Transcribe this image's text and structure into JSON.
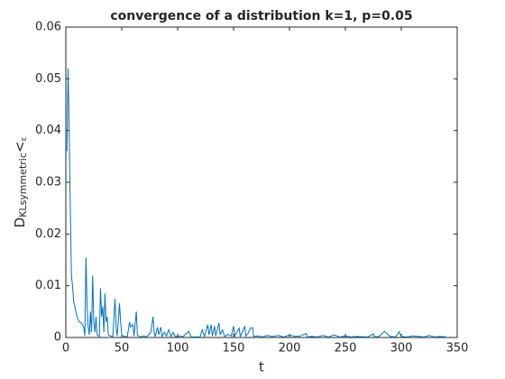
{
  "chart_data": {
    "type": "line",
    "title": "convergence of a distribution k=1, p=0.05",
    "xlabel": "t",
    "ylabel": [
      "D",
      "KLsymmetric",
      "<",
      "ε"
    ],
    "xlim": [
      0,
      350
    ],
    "xticks": [
      0,
      50,
      100,
      150,
      200,
      250,
      300,
      350
    ],
    "ylim": [
      0,
      0.06
    ],
    "yticks": [
      0,
      0.01,
      0.02,
      0.03,
      0.04,
      0.05,
      0.06
    ],
    "grid": false,
    "series": [
      {
        "color": "#0072bd",
        "x": [
          1,
          2,
          3,
          4,
          5,
          6,
          7,
          8,
          9,
          10,
          12,
          14,
          16,
          17,
          18,
          19,
          20,
          21,
          22,
          23,
          24,
          25,
          26,
          27,
          28,
          30,
          31,
          32,
          33,
          34,
          35,
          36,
          37,
          38,
          40,
          42,
          44,
          45,
          46,
          48,
          49,
          50,
          52,
          55,
          57,
          58,
          60,
          61,
          63,
          64,
          66,
          70,
          72,
          76,
          78,
          79,
          80,
          82,
          83,
          85,
          86,
          88,
          90,
          92,
          94,
          96,
          98,
          100,
          105,
          110,
          112,
          120,
          122,
          124,
          127,
          128,
          130,
          131,
          133,
          134,
          137,
          138,
          140,
          142,
          145,
          148,
          150,
          151,
          155,
          156,
          160,
          161,
          163,
          165,
          167,
          168,
          172,
          175,
          180,
          185,
          190,
          195,
          200,
          205,
          210,
          215,
          216,
          220,
          225,
          230,
          235,
          240,
          245,
          250,
          255,
          260,
          270,
          275,
          276,
          280,
          285,
          287,
          290,
          295,
          298,
          300,
          305,
          310,
          320,
          325,
          330,
          335,
          340
        ],
        "values": [
          0.036,
          0.052,
          0.04,
          0.025,
          0.012,
          0.01,
          0.007,
          0.006,
          0.005,
          0.004,
          0.003,
          0.0028,
          0.002,
          0.0003,
          0.0155,
          0.006,
          0.002,
          0.0005,
          0.005,
          0.001,
          0.012,
          0.003,
          0.001,
          0.004,
          0.0005,
          0.0002,
          0.0095,
          0.004,
          0.006,
          0.001,
          0.0085,
          0.003,
          0.004,
          0.0005,
          0.0003,
          0.0002,
          0.0075,
          0.002,
          0.0003,
          0.0066,
          0.003,
          0.0005,
          0.0002,
          0.0002,
          0.003,
          0.002,
          0.0025,
          0.0003,
          0.005,
          0.0005,
          0.0001,
          0.0003,
          0.0001,
          0.001,
          0.004,
          0.001,
          0.0002,
          0.002,
          0.0005,
          0.002,
          0.0002,
          0.001,
          0.0003,
          0.0015,
          0.0002,
          0.001,
          0.0001,
          0.0003,
          0.0002,
          0.0012,
          0.0001,
          0.0001,
          0.0015,
          0.0002,
          0.0025,
          0.0005,
          0.0025,
          0.0003,
          0.0022,
          0.0003,
          0.0028,
          0.0005,
          0.0015,
          0.0002,
          0.0006,
          0.0003,
          0.0022,
          0.0003,
          0.0018,
          0.0002,
          0.0021,
          0.0003,
          0.0008,
          0.0018,
          0.0019,
          0.0002,
          0.0003,
          0.0001,
          0.0004,
          0.0002,
          0.0004,
          0.0001,
          0.0005,
          0.0002,
          0.0003,
          0.0008,
          0.0001,
          0.0002,
          0.0001,
          0.0004,
          0.0001,
          0.0005,
          0.0001,
          0.0003,
          0.0001,
          0.0002,
          0.0001,
          0.0007,
          0.0001,
          0.0002,
          0.0012,
          0.0008,
          0.0002,
          0.0001,
          0.0011,
          0.0002,
          0.0001,
          0.0003,
          0.0001,
          0.0004,
          0.0001,
          0.0002,
          0.0001
        ]
      }
    ]
  }
}
